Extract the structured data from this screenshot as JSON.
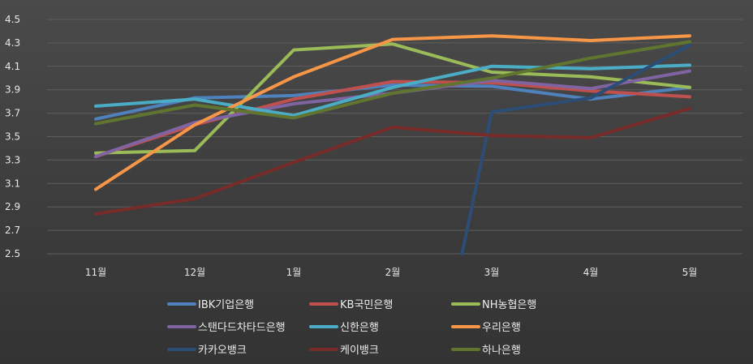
{
  "chart_data": {
    "type": "line",
    "title": "",
    "xlabel": "",
    "ylabel": "",
    "categories": [
      "11월",
      "12월",
      "1월",
      "2월",
      "3월",
      "4월",
      "5월"
    ],
    "ylim": [
      2.5,
      4.5
    ],
    "yticks": [
      "2.5",
      "2.7",
      "2.9",
      "3.1",
      "3.3",
      "3.5",
      "3.7",
      "3.9",
      "4.1",
      "4.3",
      "4.5"
    ],
    "grid": true,
    "legend_position": "bottom",
    "series": [
      {
        "name": "IBK기업은행",
        "color": "#4f81bd",
        "values": [
          3.65,
          3.83,
          3.85,
          3.94,
          3.93,
          3.82,
          3.92
        ]
      },
      {
        "name": "KB국민은행",
        "color": "#c0504d",
        "values": [
          3.33,
          3.6,
          3.82,
          3.97,
          3.96,
          3.89,
          3.84
        ]
      },
      {
        "name": "NH농협은행",
        "color": "#9bbb59",
        "values": [
          3.36,
          3.38,
          4.24,
          4.29,
          4.05,
          4.01,
          3.92
        ]
      },
      {
        "name": "스탠다드차타드은행",
        "color": "#8064a2",
        "values": [
          3.33,
          3.62,
          3.78,
          3.87,
          3.98,
          3.91,
          4.06
        ]
      },
      {
        "name": "신한은행",
        "color": "#4bacc6",
        "values": [
          3.76,
          3.82,
          3.68,
          3.92,
          4.1,
          4.08,
          4.11
        ]
      },
      {
        "name": "우리은행",
        "color": "#f79646",
        "values": [
          3.05,
          3.6,
          4.01,
          4.33,
          4.36,
          4.32,
          4.36
        ]
      },
      {
        "name": "카카오뱅크",
        "color": "#2c4d75",
        "values": [
          null,
          null,
          null,
          null,
          3.71,
          3.83,
          4.28
        ],
        "points": [
          [
            3.7,
            2.5
          ],
          [
            4,
            3.71
          ],
          [
            5,
            3.83
          ],
          [
            6,
            4.28
          ]
        ]
      },
      {
        "name": "케이뱅크",
        "color": "#772c2a",
        "values": [
          2.84,
          2.97,
          3.28,
          3.58,
          3.51,
          3.49,
          3.74
        ]
      },
      {
        "name": "하나은행",
        "color": "#5f7530",
        "values": [
          3.61,
          3.77,
          3.66,
          3.87,
          4.0,
          4.17,
          4.31
        ]
      }
    ]
  }
}
